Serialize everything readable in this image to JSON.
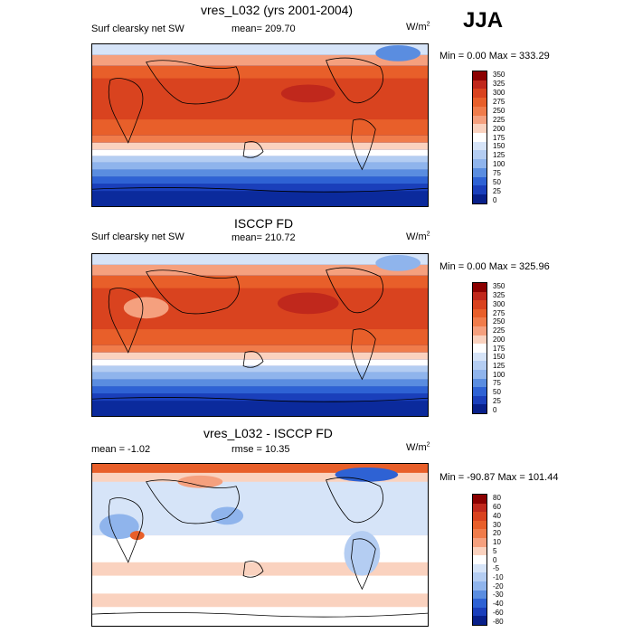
{
  "season": "JJA",
  "panels": [
    {
      "title": "vres_L032 (yrs 2001-2004)",
      "left_label": "Surf clearsky net SW",
      "center_label": "mean= 209.70",
      "units_base": "W/m",
      "units_sup": "2",
      "minmax": "Min =   0.00 Max = 333.29"
    },
    {
      "title": "ISCCP FD",
      "left_label": "Surf clearsky net SW",
      "center_label": "mean= 210.72",
      "units_base": "W/m",
      "units_sup": "2",
      "minmax": "Min =   0.00 Max = 325.96"
    },
    {
      "title": "vres_L032 - ISCCP FD",
      "left_label": "mean =  -1.02",
      "center_label": "rmse =  10.35",
      "units_base": "W/m",
      "units_sup": "2",
      "minmax": "Min = -90.87 Max = 101.44"
    }
  ],
  "chart_data": [
    {
      "type": "heatmap",
      "title": "vres_L032 (yrs 2001-2004)",
      "variable": "Surf clearsky net SW",
      "mean": 209.7,
      "min": 0.0,
      "max": 333.29,
      "colorbar_levels": [
        350,
        325,
        300,
        275,
        250,
        225,
        200,
        175,
        150,
        125,
        100,
        75,
        50,
        25,
        0
      ],
      "colorbar_labels": [
        "350",
        "325",
        "300",
        "275",
        "250",
        "225",
        "200",
        "175",
        "150",
        "125",
        "100",
        "75",
        "50",
        "25",
        "0"
      ],
      "colors": [
        "#8b0000",
        "#c0281c",
        "#d9431f",
        "#e85f2a",
        "#f07c4b",
        "#f5a07e",
        "#fad2bf",
        "#ffffff",
        "#d6e4f8",
        "#b4cdf2",
        "#8fb4ec",
        "#5a8de0",
        "#2e62d4",
        "#1a3fbb",
        "#08208a"
      ]
    },
    {
      "type": "heatmap",
      "title": "ISCCP FD",
      "variable": "Surf clearsky net SW",
      "mean": 210.72,
      "min": 0.0,
      "max": 325.96,
      "colorbar_levels": [
        350,
        325,
        300,
        275,
        250,
        225,
        200,
        175,
        150,
        125,
        100,
        75,
        50,
        25,
        0
      ],
      "colorbar_labels": [
        "350",
        "325",
        "300",
        "275",
        "250",
        "225",
        "200",
        "175",
        "150",
        "125",
        "100",
        "75",
        "50",
        "25",
        "0"
      ],
      "colors": [
        "#8b0000",
        "#c0281c",
        "#d9431f",
        "#e85f2a",
        "#f07c4b",
        "#f5a07e",
        "#fad2bf",
        "#ffffff",
        "#d6e4f8",
        "#b4cdf2",
        "#8fb4ec",
        "#5a8de0",
        "#2e62d4",
        "#1a3fbb",
        "#08208a"
      ]
    },
    {
      "type": "heatmap",
      "title": "vres_L032 - ISCCP FD",
      "mean": -1.02,
      "rmse": 10.35,
      "min": -90.87,
      "max": 101.44,
      "colorbar_levels": [
        80,
        60,
        40,
        30,
        20,
        10,
        5,
        0,
        -5,
        -10,
        -20,
        -30,
        -40,
        -60,
        -80
      ],
      "colorbar_labels": [
        "80",
        "60",
        "40",
        "30",
        "20",
        "10",
        "5",
        "0",
        "-5",
        "-10",
        "-20",
        "-30",
        "-40",
        "-60",
        "-80"
      ],
      "colors": [
        "#8b0000",
        "#c0281c",
        "#d9431f",
        "#e85f2a",
        "#f07c4b",
        "#f5a07e",
        "#fad2bf",
        "#ffffff",
        "#d6e4f8",
        "#b4cdf2",
        "#8fb4ec",
        "#5a8de0",
        "#2e62d4",
        "#1a3fbb",
        "#08208a"
      ]
    }
  ]
}
